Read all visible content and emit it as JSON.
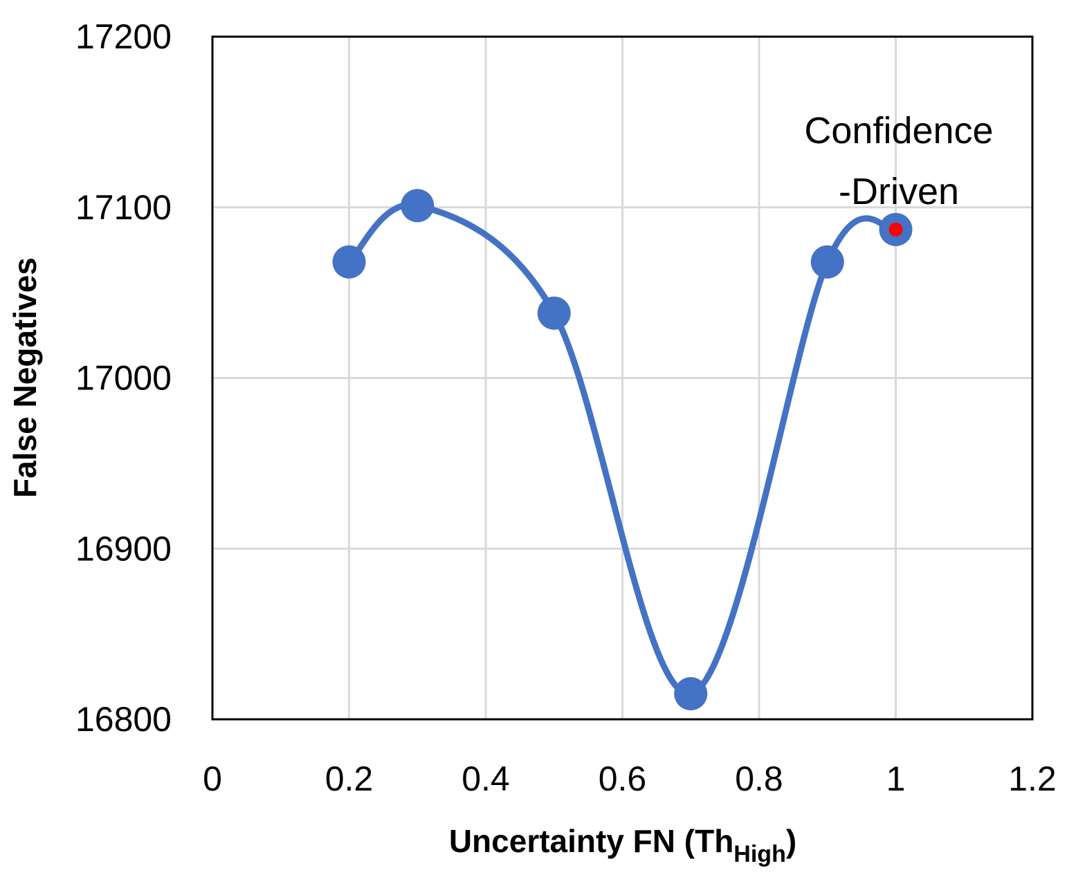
{
  "chart_data": {
    "type": "scatter",
    "title": "",
    "xlabel": "Uncertainty FN (Th",
    "xlabel_subscript": "High",
    "xlabel_suffix": ")",
    "ylabel": "False Negatives",
    "xlim": [
      0,
      1.2
    ],
    "ylim": [
      16800,
      17200
    ],
    "x_ticks": [
      "0",
      "0.2",
      "0.4",
      "0.6",
      "0.8",
      "1",
      "1.2"
    ],
    "y_ticks": [
      "16800",
      "16900",
      "17000",
      "17100",
      "17200"
    ],
    "grid": true,
    "smoothed_line": true,
    "series": [
      {
        "x": [
          0.2,
          0.3,
          0.5,
          0.7,
          0.9,
          1.0
        ],
        "y": [
          17068,
          17101,
          17038,
          16815,
          17068,
          17087
        ],
        "color": "#4472C4"
      }
    ],
    "highlight": {
      "x": 1.0,
      "y": 17087,
      "color": "#FF0000"
    },
    "annotation": {
      "lines": [
        "Confidence",
        "-Driven"
      ]
    }
  }
}
